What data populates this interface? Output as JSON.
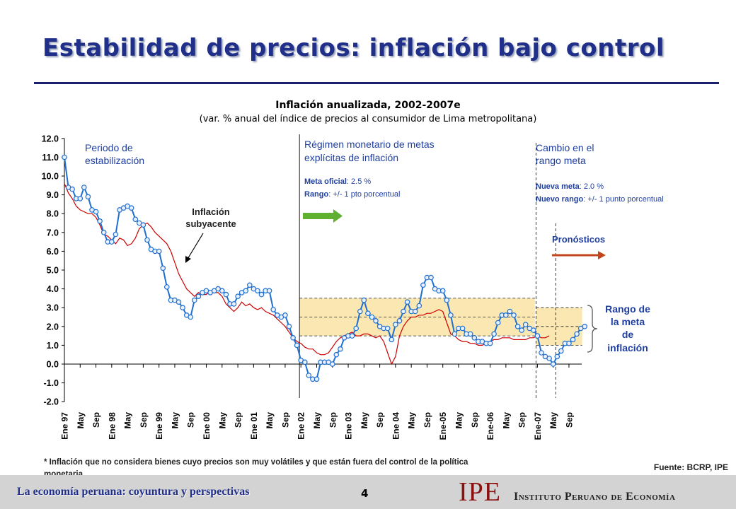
{
  "slide": {
    "title": "Estabilidad de precios: inflación bajo control",
    "footnote_line1": "* Inflación que no considera bienes cuyo precios son muy volátiles y que están fuera del control de la política",
    "footnote_line2": "monetaria",
    "source": "Fuente: BCRP, IPE",
    "footer_left": "La economía peruana: coyuntura y perspectivas",
    "page_number": "4",
    "logo": "IPE",
    "institution": "Instituto Peruano de Economía"
  },
  "colors": {
    "title": "#1f2f8a",
    "headline": "#1f6fd0",
    "core": "#cc0000",
    "band": "#fbe7b2",
    "arrow_green": "#5fb030",
    "arrow_red": "#c0461a",
    "annot": "#1f3fa0"
  },
  "chart_data": {
    "type": "line",
    "title": "Inflación anualizada, 2002-2007e",
    "subtitle": "(var. % anual del índice de precios al consumidor de Lima metropolitana)",
    "ylim": [
      -2,
      12
    ],
    "yticks": [
      "12.0",
      "11.0",
      "10.0",
      "9.0",
      "8.0",
      "7.0",
      "6.0",
      "5.0",
      "4.0",
      "3.0",
      "2.0",
      "1.0",
      "0.0",
      "-1.0",
      "-2.0"
    ],
    "xtick_labels": [
      "Ene 97",
      "May",
      "Sep",
      "Ene 98",
      "May",
      "Sep",
      "Ene 99",
      "May",
      "Sep",
      "Ene 00",
      "May",
      "Sep",
      "Ene 01",
      "May",
      "Sep",
      "Ene 02",
      "May",
      "Sep",
      "Ene 03",
      "May",
      "Sep",
      "Ene 04",
      "May",
      "Sep",
      "Ene-05",
      "May",
      "Sep",
      "Ene-06",
      "May",
      "Sep",
      "Ene-07",
      "May",
      "Sep"
    ],
    "x_range_months": [
      "1997-01",
      "2007-12"
    ],
    "series": [
      {
        "name": "headline",
        "values": [
          11.0,
          9.4,
          9.3,
          8.8,
          8.8,
          9.4,
          8.9,
          8.2,
          8.1,
          7.6,
          7.0,
          6.5,
          6.5,
          6.9,
          8.2,
          8.3,
          8.4,
          8.3,
          7.7,
          7.5,
          7.4,
          6.6,
          6.1,
          6.0,
          6.0,
          5.1,
          4.1,
          3.4,
          3.4,
          3.3,
          3.0,
          2.6,
          2.5,
          3.4,
          3.6,
          3.8,
          3.9,
          3.8,
          3.9,
          4.0,
          3.9,
          3.7,
          3.2,
          3.2,
          3.6,
          3.8,
          3.9,
          4.2,
          4.0,
          3.9,
          3.7,
          3.9,
          3.9,
          2.9,
          2.6,
          2.5,
          2.6,
          2.0,
          1.4,
          1.0,
          0.2,
          0.1,
          -0.6,
          -0.8,
          -0.8,
          0.1,
          0.1,
          0.1,
          0.0,
          0.5,
          0.8,
          1.4,
          1.5,
          1.5,
          1.9,
          2.8,
          3.4,
          2.7,
          2.5,
          2.3,
          2.0,
          1.9,
          1.9,
          1.3,
          2.1,
          2.3,
          2.8,
          3.3,
          2.8,
          2.8,
          3.1,
          4.2,
          4.6,
          4.6,
          4.0,
          3.9,
          3.9,
          3.4,
          2.6,
          1.6,
          1.9,
          1.9,
          1.6,
          1.6,
          1.4,
          1.2,
          1.2,
          1.1,
          1.1,
          1.6,
          2.2,
          2.6,
          2.6,
          2.8,
          2.6,
          2.0,
          1.8,
          2.1,
          1.9,
          1.8,
          1.5,
          0.6,
          0.4,
          0.3,
          0.0,
          0.4,
          0.7,
          1.1,
          1.1,
          1.3,
          1.6,
          1.9,
          2.0
        ]
      },
      {
        "name": "Inflación subyacente",
        "values": [
          9.6,
          9.1,
          8.8,
          8.4,
          8.2,
          8.1,
          8.0,
          8.0,
          7.8,
          7.4,
          6.9,
          6.8,
          6.6,
          6.4,
          6.7,
          6.6,
          6.3,
          6.4,
          6.7,
          7.2,
          7.4,
          7.5,
          7.3,
          7.0,
          6.8,
          6.6,
          6.4,
          6.0,
          5.4,
          4.8,
          4.4,
          4.0,
          3.8,
          3.6,
          3.8,
          3.7,
          3.7,
          3.9,
          3.8,
          3.8,
          3.6,
          3.2,
          3.0,
          2.8,
          3.0,
          3.3,
          3.1,
          3.2,
          3.0,
          2.9,
          3.0,
          2.8,
          2.7,
          2.6,
          2.4,
          2.2,
          2.0,
          1.7,
          1.4,
          1.2,
          1.1,
          0.9,
          0.8,
          0.8,
          0.6,
          0.5,
          0.5,
          0.6,
          0.9,
          1.2,
          1.4,
          1.5,
          1.6,
          1.7,
          1.5,
          1.5,
          1.6,
          1.6,
          1.5,
          1.4,
          1.5,
          1.2,
          0.6,
          0.0,
          0.4,
          1.5,
          2.0,
          2.3,
          2.5,
          2.5,
          2.6,
          2.6,
          2.7,
          2.7,
          2.8,
          2.9,
          2.8,
          2.2,
          1.6,
          1.5,
          1.3,
          1.2,
          1.2,
          1.1,
          1.1,
          1.0,
          1.0,
          1.1,
          1.2,
          1.3,
          1.3,
          1.4,
          1.4,
          1.4,
          1.3,
          1.3,
          1.3,
          1.3,
          1.4,
          1.4,
          1.5,
          1.4,
          1.4,
          1.5
        ]
      }
    ],
    "markers_on": "headline",
    "bands": [
      {
        "label": "Meta oficial: 2.5 % / Rango: +/- 1 pto porcentual",
        "center": 2.5,
        "low": 1.5,
        "high": 3.5,
        "from": "2002-01",
        "to": "2006-12"
      },
      {
        "label": "Nueva meta: 2.0 % / Nuevo rango: +/- 1 punto porcentual",
        "center": 2.0,
        "low": 1.0,
        "high": 3.0,
        "from": "2007-01",
        "to": "2007-12"
      }
    ],
    "annotations": {
      "periodo": [
        "Periodo de",
        "estabilización"
      ],
      "regimen": [
        "Régimen monetario de metas",
        "explícitas de inflación"
      ],
      "meta_oficial": {
        "label": "Meta oficial",
        "value": ": 2.5 %"
      },
      "rango": {
        "label": "Rango",
        "value": ": +/- 1 pto porcentual"
      },
      "cambio": [
        "Cambio en el",
        "rango meta"
      ],
      "nueva_meta": {
        "label": "Nueva meta",
        "value": ": 2.0 %"
      },
      "nuevo_rango": {
        "label": "Nuevo rango",
        "value": ": +/- 1 punto porcentual"
      },
      "subyacente": [
        "Inflación",
        "subyacente"
      ],
      "pronosticos": "Pronósticos",
      "rango_meta": [
        "Rango de",
        "la meta",
        "de",
        "inflación"
      ]
    }
  }
}
